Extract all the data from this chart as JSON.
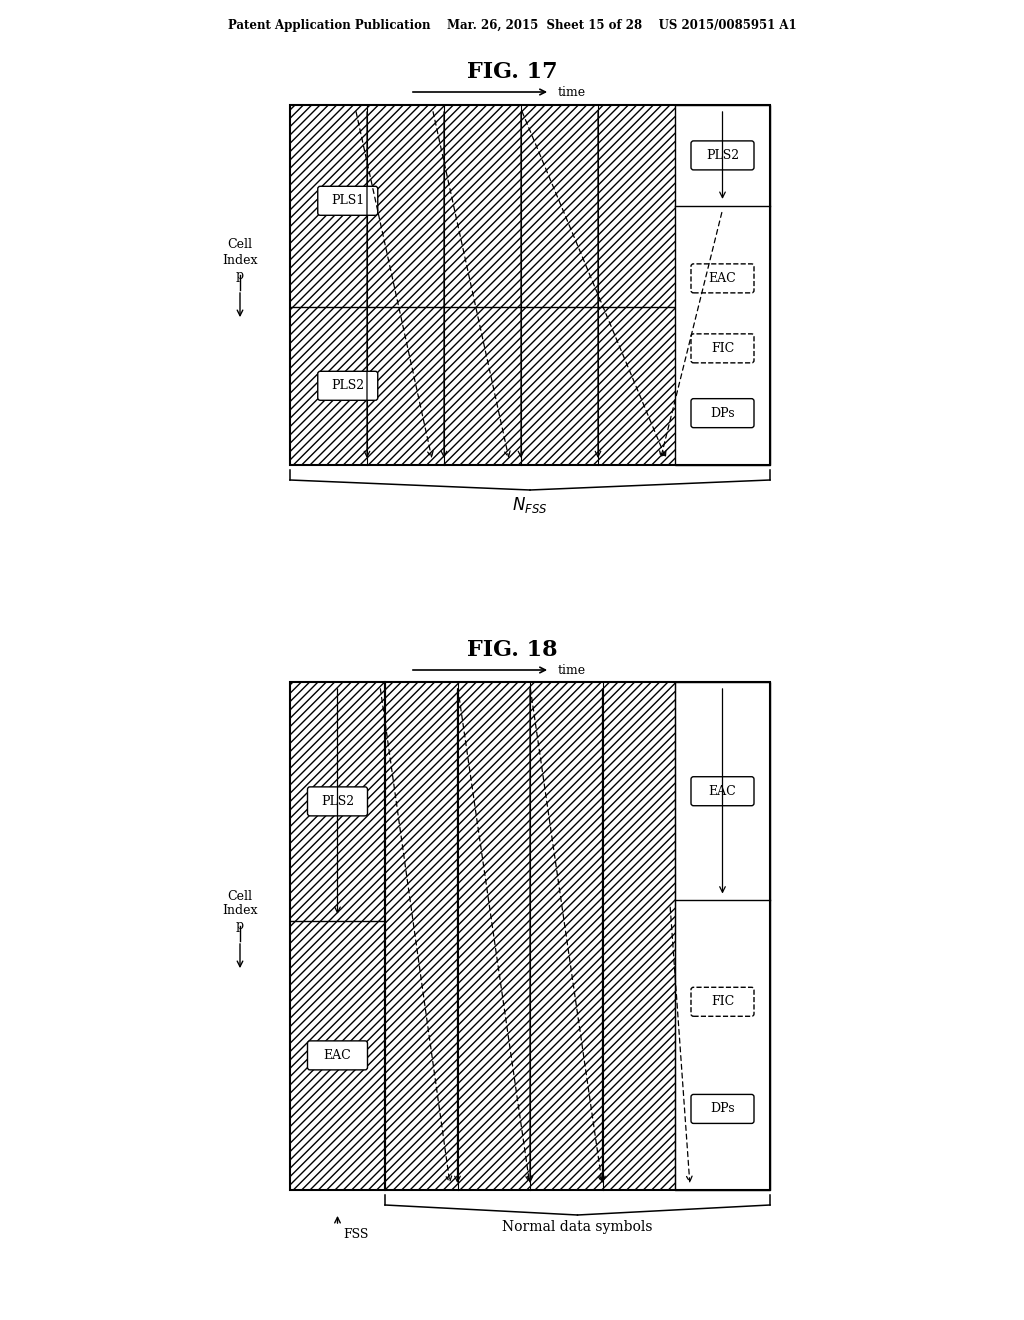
{
  "header": "Patent Application Publication    Mar. 26, 2015  Sheet 15 of 28    US 2015/0085951 A1",
  "fig17_title": "FIG. 17",
  "fig18_title": "FIG. 18",
  "bg_color": "#ffffff"
}
